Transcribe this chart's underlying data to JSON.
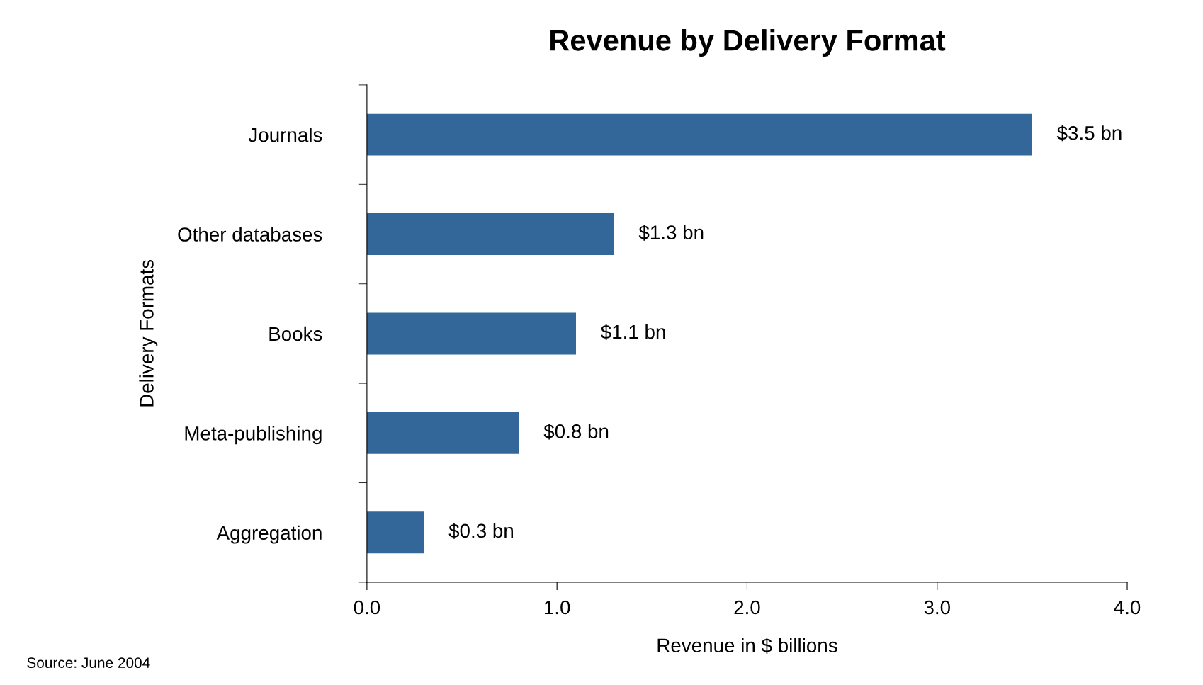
{
  "chart_data": {
    "type": "bar",
    "orientation": "horizontal",
    "title": "Revenue by Delivery Format",
    "xlabel": "Revenue in $ billions",
    "ylabel": "Delivery Formats",
    "categories": [
      "Journals",
      "Other databases",
      "Books",
      "Meta-publishing",
      "Aggregation"
    ],
    "values": [
      3.5,
      1.3,
      1.1,
      0.8,
      0.3
    ],
    "value_labels": [
      "$3.5 bn",
      "$1.3 bn",
      "$1.1 bn",
      "$0.8 bn",
      "$0.3 bn"
    ],
    "color": "#336699",
    "xlim": [
      0,
      4
    ],
    "xticks": [
      {
        "value": 0,
        "label": "0.0"
      },
      {
        "value": 1,
        "label": "1.0"
      },
      {
        "value": 2,
        "label": "2.0"
      },
      {
        "value": 3,
        "label": "3.0"
      },
      {
        "value": 4,
        "label": "4.0"
      }
    ],
    "grid": false,
    "legend": false,
    "annotations": [
      "Source: June 2004"
    ]
  }
}
